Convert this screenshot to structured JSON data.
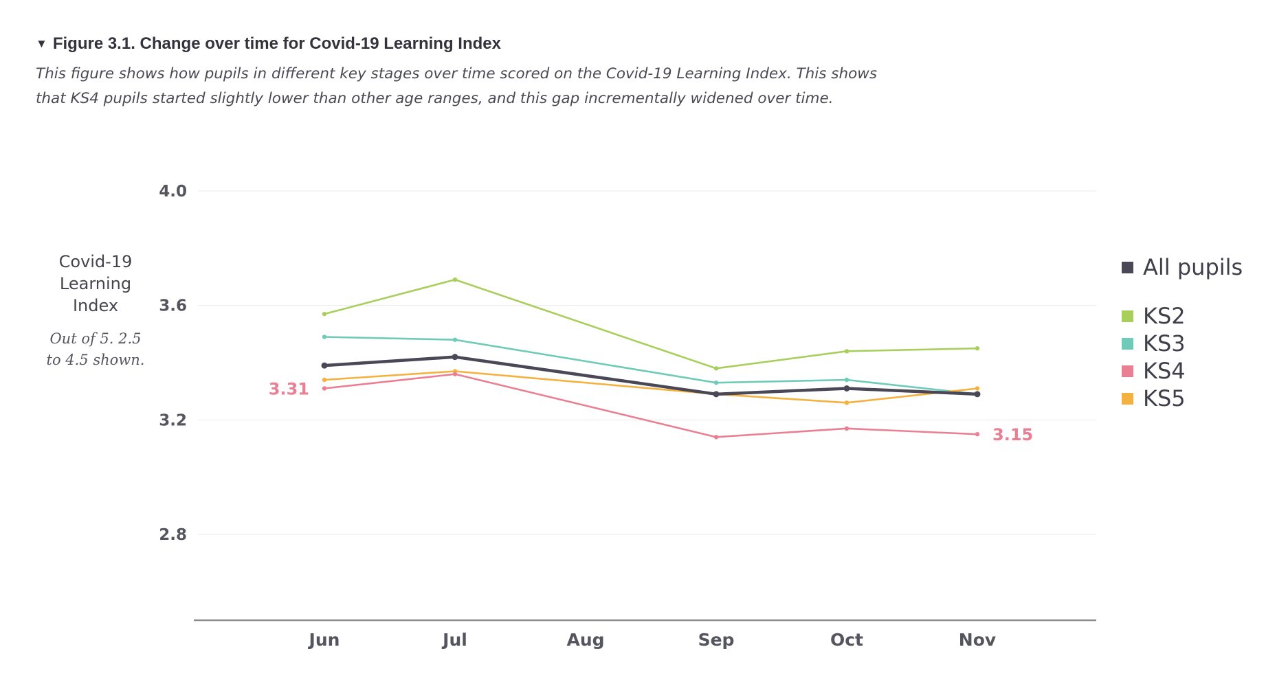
{
  "figure": {
    "caret": "▼",
    "title": "Figure 3.1. Change over time for Covid-19 Learning Index",
    "description": "This figure shows how pupils in different key stages over time scored on the Covid-19 Learning Index. This shows that KS4 pupils started slightly lower than other age ranges, and this gap incrementally widened over time."
  },
  "chart_data": {
    "type": "line",
    "categories": [
      "Jun",
      "Jul",
      "Aug",
      "Sep",
      "Oct",
      "Nov"
    ],
    "ylabel_lines": [
      "Covid-19",
      "Learning",
      "Index"
    ],
    "ylabel_note_lines": [
      "Out of 5. 2.5",
      "to 4.5 shown."
    ],
    "ylim": [
      2.5,
      4.1
    ],
    "yticks": [
      {
        "value": 2.8,
        "label": "2.8"
      },
      {
        "value": 3.2,
        "label": "3.2"
      },
      {
        "value": 3.6,
        "label": "3.6"
      },
      {
        "value": 4.0,
        "label": "4.0"
      }
    ],
    "grid": true,
    "legend_position": "right",
    "series": [
      {
        "name": "KS2",
        "color": "#a8cf5c",
        "x": [
          "Jun",
          "Jul",
          "Sep",
          "Oct",
          "Nov"
        ],
        "values": [
          3.57,
          3.69,
          3.38,
          3.44,
          3.45
        ]
      },
      {
        "name": "KS3",
        "color": "#6fcab8",
        "x": [
          "Jun",
          "Jul",
          "Sep",
          "Oct",
          "Nov"
        ],
        "values": [
          3.49,
          3.48,
          3.33,
          3.34,
          3.29
        ]
      },
      {
        "name": "KS5",
        "color": "#f5b13f",
        "x": [
          "Jun",
          "Jul",
          "Sep",
          "Oct",
          "Nov"
        ],
        "values": [
          3.34,
          3.37,
          3.29,
          3.26,
          3.31
        ]
      },
      {
        "name": "KS4",
        "color": "#ea7e93",
        "x": [
          "Jun",
          "Jul",
          "Sep",
          "Oct",
          "Nov"
        ],
        "values": [
          3.31,
          3.36,
          3.14,
          3.17,
          3.15
        ]
      },
      {
        "name": "All pupils",
        "color": "#4a4857",
        "x": [
          "Jun",
          "Jul",
          "Sep",
          "Oct",
          "Nov"
        ],
        "values": [
          3.39,
          3.42,
          3.29,
          3.31,
          3.29
        ]
      }
    ],
    "annotations": [
      {
        "series": "KS4",
        "x": "Jun",
        "text": "3.31",
        "side": "left"
      },
      {
        "series": "KS4",
        "x": "Nov",
        "text": "3.15",
        "side": "right"
      }
    ],
    "legend": [
      {
        "name": "All pupils",
        "color": "#4a4857"
      },
      {
        "name": "KS2",
        "color": "#a8cf5c"
      },
      {
        "name": "KS3",
        "color": "#6fcab8"
      },
      {
        "name": "KS4",
        "color": "#ea7e93"
      },
      {
        "name": "KS5",
        "color": "#f5b13f"
      }
    ]
  }
}
